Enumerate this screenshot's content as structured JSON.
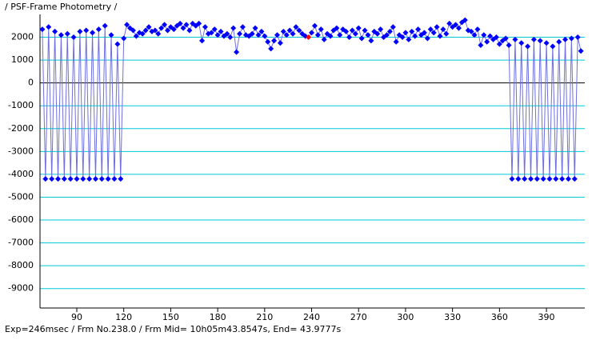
{
  "chart_data": {
    "type": "line",
    "title": "/ PSF-Frame Photometry /",
    "footer": "Exp=246msec / Frm No.238.0 / Frm Mid= 10h05m43.8547s, End= 43.9777s",
    "highlight_x": 238,
    "highlight_color": "#ff0000",
    "xlim": [
      66.5,
      414.5
    ],
    "ylim": [
      -9850,
      3000
    ],
    "xticks": [
      90,
      120,
      150,
      180,
      210,
      240,
      270,
      300,
      330,
      360,
      390
    ],
    "yticks": [
      2000,
      1000,
      0,
      -1000,
      -2000,
      -3000,
      -4000,
      -5000,
      -6000,
      -7000,
      -8000,
      -9000
    ],
    "grid": true,
    "grid_color": "#00c8d8",
    "x": [
      68,
      70,
      72,
      74,
      76,
      78,
      80,
      82,
      84,
      86,
      88,
      90,
      92,
      94,
      96,
      98,
      100,
      102,
      104,
      106,
      108,
      110,
      112,
      114,
      116,
      118,
      120,
      122,
      124,
      126,
      128,
      130,
      132,
      134,
      136,
      138,
      140,
      142,
      144,
      146,
      148,
      150,
      152,
      154,
      156,
      158,
      160,
      162,
      164,
      166,
      168,
      170,
      172,
      174,
      176,
      178,
      180,
      182,
      184,
      186,
      188,
      190,
      192,
      194,
      196,
      198,
      200,
      202,
      204,
      206,
      208,
      210,
      212,
      214,
      216,
      218,
      220,
      222,
      224,
      226,
      228,
      230,
      232,
      234,
      236,
      238,
      240,
      242,
      244,
      246,
      248,
      250,
      252,
      254,
      256,
      258,
      260,
      262,
      264,
      266,
      268,
      270,
      272,
      274,
      276,
      278,
      280,
      282,
      284,
      286,
      288,
      290,
      292,
      294,
      296,
      298,
      300,
      302,
      304,
      306,
      308,
      310,
      312,
      314,
      316,
      318,
      320,
      322,
      324,
      326,
      328,
      330,
      332,
      334,
      336,
      338,
      340,
      342,
      344,
      346,
      348,
      350,
      352,
      354,
      356,
      358,
      360,
      362,
      364,
      366,
      368,
      370,
      372,
      374,
      376,
      378,
      380,
      382,
      384,
      386,
      388,
      390,
      392,
      394,
      396,
      398,
      400,
      402,
      404,
      406,
      408,
      410,
      412
    ],
    "series": [
      {
        "color": "#0000ff",
        "line_color": "#6f6fe0",
        "values": [
          2350,
          -4200,
          2450,
          -4200,
          2250,
          -4200,
          2100,
          -4200,
          2150,
          -4200,
          2000,
          -4200,
          2250,
          -4200,
          2300,
          -4200,
          2200,
          -4200,
          2350,
          -4200,
          2500,
          -4200,
          2100,
          -4200,
          1700,
          -4200,
          1950,
          2550,
          2400,
          2300,
          2050,
          2200,
          2150,
          2300,
          2450,
          2250,
          2300,
          2150,
          2400,
          2550,
          2300,
          2450,
          2350,
          2500,
          2600,
          2400,
          2550,
          2300,
          2600,
          2500,
          2600,
          1850,
          2450,
          2150,
          2200,
          2350,
          2100,
          2250,
          2050,
          2150,
          2000,
          2400,
          1350,
          2150,
          2450,
          2100,
          2050,
          2150,
          2400,
          2100,
          2250,
          2050,
          1800,
          1500,
          1850,
          2100,
          1750,
          2250,
          2100,
          2300,
          2150,
          2450,
          2300,
          2150,
          2050,
          2000,
          2200,
          2500,
          2100,
          2350,
          1900,
          2150,
          2050,
          2300,
          2400,
          2100,
          2350,
          2250,
          2000,
          2300,
          2150,
          2400,
          1950,
          2300,
          2100,
          1850,
          2250,
          2150,
          2350,
          2000,
          2100,
          2250,
          2450,
          1800,
          2100,
          2000,
          2200,
          1900,
          2250,
          2050,
          2350,
          2100,
          2200,
          1950,
          2350,
          2200,
          2450,
          2050,
          2350,
          2150,
          2600,
          2450,
          2550,
          2400,
          2650,
          2750,
          2300,
          2250,
          2100,
          2350,
          1650,
          2100,
          1800,
          2050,
          1900,
          2000,
          1700,
          1850,
          1950,
          1650,
          -4200,
          1900,
          -4200,
          1750,
          -4200,
          1600,
          -4200,
          1900,
          -4200,
          1850,
          -4200,
          1750,
          -4200,
          1600,
          -4200,
          1800,
          -4200,
          1900,
          -4200,
          1950,
          -4200,
          2000,
          1400
        ]
      }
    ]
  }
}
